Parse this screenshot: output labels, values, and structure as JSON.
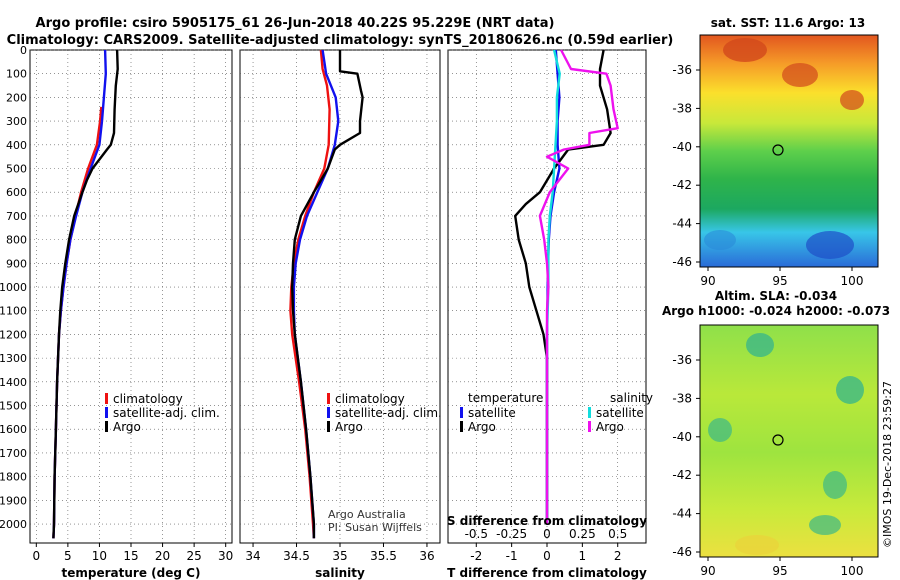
{
  "header": {
    "line1": "Argo profile: csiro 5905175_61 26-Jun-2018 40.22S 95.229E (NRT data)",
    "line2": "Climatology: CARS2009. Satellite-adjusted climatology: synTS_20180626.nc (0.59d earlier)"
  },
  "colors": {
    "climatology": "#ee1111",
    "satellite": "#1111ee",
    "argo": "#000000",
    "sat_salinity": "#11dddd",
    "argo_salinity": "#ee11ee"
  },
  "credits": {
    "argo_australia": "Argo Australia",
    "pi": "PI: Susan Wijffels",
    "imos": "©IMOS 19-Dec-2018 23:59:27"
  },
  "map_sst": {
    "title": "sat. SST: 11.6 Argo: 13",
    "xticks": [
      "90",
      "95",
      "100"
    ],
    "yticks": [
      "-36",
      "-38",
      "-40",
      "-42",
      "-44",
      "-46"
    ],
    "float_position": {
      "lon": 95.229,
      "lat": -40.22
    }
  },
  "map_sla": {
    "title1": "Altim. SLA: -0.034",
    "title2": "Argo h1000: -0.024 h2000: -0.073",
    "xticks": [
      "90",
      "95",
      "100"
    ],
    "yticks": [
      "-36",
      "-38",
      "-40",
      "-42",
      "-44",
      "-46"
    ],
    "float_position": {
      "lon": 95.229,
      "lat": -40.22
    }
  },
  "chart_data": [
    {
      "type": "line",
      "id": "temperature",
      "xlabel": "temperature (deg C)",
      "ylabel": "",
      "xlim": [
        -1,
        31
      ],
      "ylim": [
        2080,
        0
      ],
      "y_inverted": true,
      "xticks": [
        "0",
        "5",
        "10",
        "15",
        "20",
        "25",
        "30"
      ],
      "yticks": [
        "0",
        "100",
        "200",
        "300",
        "400",
        "500",
        "600",
        "700",
        "800",
        "900",
        "1000",
        "1100",
        "1200",
        "1300",
        "1400",
        "1500",
        "1600",
        "1700",
        "1800",
        "1900",
        "2000"
      ],
      "legend": [
        "climatology",
        "satellite-adj. clim.",
        "Argo"
      ],
      "series": [
        {
          "name": "climatology",
          "color": "#ee1111",
          "y": [
            240,
            300,
            400,
            500,
            600,
            700,
            800,
            900,
            1000,
            1100,
            1200,
            1400,
            1600,
            1800,
            2000,
            2060
          ],
          "x": [
            10.3,
            10.1,
            9.6,
            8.2,
            7.1,
            6.2,
            5.4,
            4.8,
            4.3,
            3.9,
            3.6,
            3.3,
            3.1,
            2.9,
            2.8,
            2.7
          ]
        },
        {
          "name": "satellite-adj. clim.",
          "color": "#1111ee",
          "y": [
            0,
            100,
            200,
            300,
            400,
            500,
            600,
            700,
            800,
            900,
            1000,
            1100,
            1200,
            1400,
            1600,
            1800,
            2000,
            2060
          ],
          "x": [
            10.9,
            11.0,
            10.7,
            10.4,
            10.0,
            8.6,
            7.3,
            6.3,
            5.4,
            4.8,
            4.3,
            3.9,
            3.6,
            3.3,
            3.1,
            2.9,
            2.8,
            2.7
          ]
        },
        {
          "name": "Argo",
          "color": "#000000",
          "y": [
            0,
            80,
            150,
            250,
            350,
            400,
            420,
            500,
            550,
            600,
            700,
            800,
            900,
            1000,
            1100,
            1200,
            1400,
            1600,
            1800,
            2000,
            2060
          ],
          "x": [
            12.8,
            12.9,
            12.6,
            12.4,
            12.3,
            11.8,
            11.2,
            8.9,
            8.0,
            7.3,
            6.0,
            5.2,
            4.6,
            4.1,
            3.8,
            3.6,
            3.3,
            3.1,
            2.9,
            2.8,
            2.7
          ]
        }
      ]
    },
    {
      "type": "line",
      "id": "salinity",
      "xlabel": "salinity",
      "ylabel": "",
      "xlim": [
        33.85,
        36.15
      ],
      "ylim": [
        2080,
        0
      ],
      "y_inverted": true,
      "xticks": [
        "34",
        "34.5",
        "35",
        "35.5",
        "36"
      ],
      "legend": [
        "climatology",
        "satellite-adj. clim.",
        "Argo"
      ],
      "series": [
        {
          "name": "climatology",
          "color": "#ee1111",
          "y": [
            0,
            80,
            150,
            250,
            400,
            500,
            600,
            700,
            800,
            900,
            1000,
            1100,
            1200,
            1400,
            1600,
            1800,
            2000,
            2060
          ],
          "x": [
            34.78,
            34.8,
            34.85,
            34.88,
            34.87,
            34.82,
            34.7,
            34.6,
            34.52,
            34.47,
            34.44,
            34.43,
            34.45,
            34.53,
            34.6,
            34.65,
            34.69,
            34.7
          ]
        },
        {
          "name": "satellite-adj. clim.",
          "color": "#1111ee",
          "y": [
            0,
            100,
            200,
            300,
            400,
            500,
            600,
            700,
            800,
            900,
            1000,
            1100,
            1200,
            1400,
            1600,
            1800,
            2000,
            2060
          ],
          "x": [
            34.8,
            34.84,
            34.95,
            34.98,
            34.94,
            34.86,
            34.74,
            34.62,
            34.54,
            34.49,
            34.47,
            34.47,
            34.48,
            34.55,
            34.61,
            34.66,
            34.7,
            34.7
          ]
        },
        {
          "name": "Argo",
          "color": "#000000",
          "y": [
            0,
            90,
            100,
            170,
            200,
            300,
            350,
            400,
            420,
            500,
            550,
            600,
            700,
            800,
            900,
            1000,
            1100,
            1200,
            1400,
            1600,
            1800,
            2000,
            2060
          ],
          "x": [
            35.0,
            35.0,
            35.2,
            35.24,
            35.26,
            35.23,
            35.23,
            35.0,
            34.94,
            34.86,
            34.78,
            34.7,
            34.55,
            34.48,
            34.46,
            34.45,
            34.46,
            34.48,
            34.55,
            34.61,
            34.66,
            34.7,
            34.7
          ]
        }
      ]
    },
    {
      "type": "line",
      "id": "difference",
      "xlabel": "T difference from climatology",
      "x2label": "S difference from climatology",
      "xlim": [
        -2.8,
        2.8
      ],
      "ylim": [
        2080,
        0
      ],
      "y_inverted": true,
      "xticks": [
        "-2",
        "-1",
        "0",
        "1",
        "2"
      ],
      "x2ticks": [
        "-0.5",
        "-0.25",
        "0",
        "0.25",
        "0.5"
      ],
      "legend_left_title": "temperature",
      "legend_right_title": "salinity",
      "legend": [
        "satellite",
        "Argo",
        "satellite",
        "Argo"
      ],
      "series": [
        {
          "name": "temperature satellite",
          "color": "#1111ee",
          "y": [
            0,
            100,
            200,
            300,
            400,
            500,
            600,
            700,
            800,
            900,
            1000,
            1200,
            1500,
            2000
          ],
          "x": [
            0.25,
            0.3,
            0.35,
            0.3,
            0.3,
            0.35,
            0.2,
            0.1,
            0.05,
            0.03,
            0.02,
            0.0,
            0.0,
            0.0
          ]
        },
        {
          "name": "temperature Argo",
          "color": "#000000",
          "y": [
            0,
            80,
            150,
            250,
            350,
            400,
            420,
            500,
            550,
            600,
            650,
            700,
            800,
            900,
            1000,
            1100,
            1200,
            1300,
            1400,
            1600,
            1800,
            2000
          ],
          "x": [
            1.6,
            1.5,
            1.5,
            1.7,
            1.8,
            1.6,
            0.6,
            0.2,
            0.0,
            -0.2,
            -0.6,
            -0.9,
            -0.8,
            -0.6,
            -0.5,
            -0.3,
            -0.1,
            0.0,
            0.0,
            0.0,
            0.0,
            0.0
          ]
        },
        {
          "name": "salinity satellite",
          "color": "#11dddd",
          "y": [
            0,
            100,
            200,
            300,
            400,
            500,
            600,
            700,
            800,
            900,
            1000,
            1200,
            1500,
            2000
          ],
          "x": [
            0.05,
            0.09,
            0.07,
            0.07,
            0.06,
            0.05,
            0.04,
            0.02,
            0.01,
            0.01,
            0.01,
            0.0,
            0.0,
            0.0
          ]
        },
        {
          "name": "salinity Argo",
          "color": "#ee11ee",
          "y": [
            0,
            80,
            100,
            150,
            250,
            330,
            350,
            400,
            420,
            450,
            500,
            600,
            700,
            800,
            900,
            1000,
            1100,
            1300,
            1500,
            2000
          ],
          "x": [
            0.1,
            0.17,
            0.42,
            0.45,
            0.47,
            0.5,
            0.3,
            0.3,
            0.12,
            0.0,
            0.15,
            0.02,
            -0.05,
            -0.02,
            0.0,
            0.01,
            0.0,
            0.0,
            0.0,
            0.0
          ]
        }
      ]
    }
  ]
}
